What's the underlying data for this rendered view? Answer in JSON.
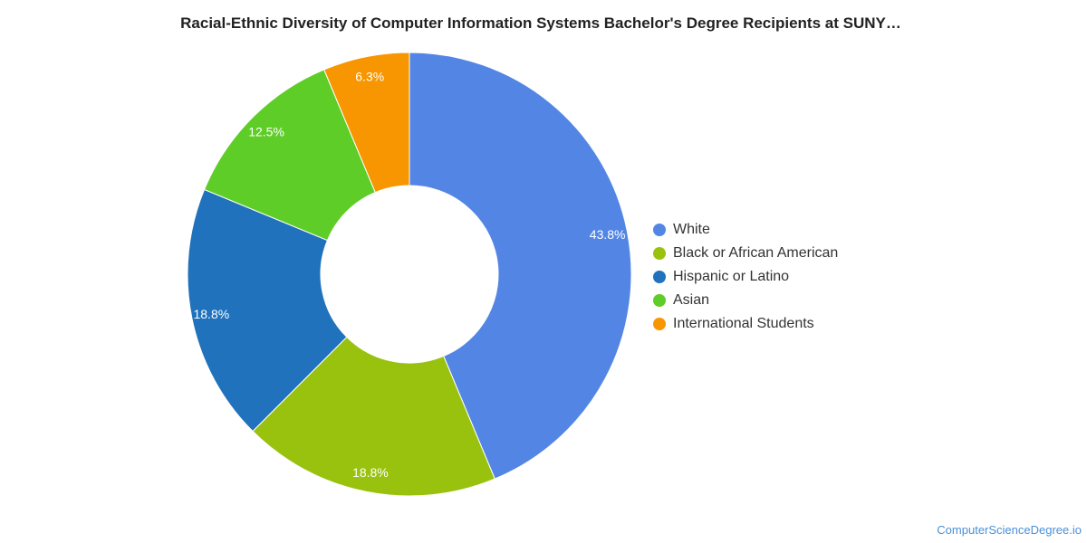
{
  "chart_data": {
    "type": "pie",
    "title": "Racial-Ethnic Diversity of Computer Information Systems Bachelor's Degree Recipients at SUNY…",
    "donut": true,
    "categories": [
      "White",
      "Black or African American",
      "Hispanic or Latino",
      "Asian",
      "International Students"
    ],
    "values": [
      43.8,
      18.8,
      18.8,
      12.5,
      6.3
    ],
    "labels": [
      "43.8%",
      "18.8%",
      "18.8%",
      "12.5%",
      "6.3%"
    ],
    "colors": [
      "#5386e4",
      "#99c20f",
      "#1f72bb",
      "#5fcd27",
      "#f79600"
    ],
    "legend_position": "right"
  },
  "footer": {
    "source": "ComputerScienceDegree.io"
  }
}
